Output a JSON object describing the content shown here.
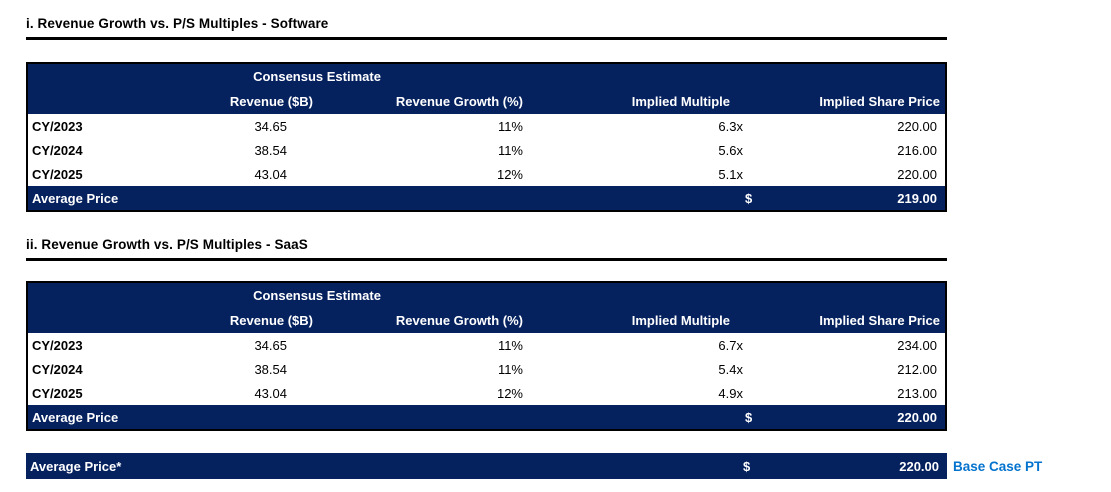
{
  "colors": {
    "navy": "#05215E",
    "note_blue": "#0473CE"
  },
  "sections": [
    {
      "title": "i. Revenue Growth vs. P/S Multiples - Software",
      "group_header": "Consensus Estimate",
      "columns": {
        "revenue": "Revenue ($B)",
        "growth": "Revenue Growth (%)",
        "multiple": "Implied Multiple",
        "price": "Implied Share Price"
      },
      "rows": [
        {
          "label": "CY/2023",
          "revenue": "34.65",
          "growth": "11%",
          "multiple": "6.3x",
          "price": "220.00"
        },
        {
          "label": "CY/2024",
          "revenue": "38.54",
          "growth": "11%",
          "multiple": "5.6x",
          "price": "216.00"
        },
        {
          "label": "CY/2025",
          "revenue": "43.04",
          "growth": "12%",
          "multiple": "5.1x",
          "price": "220.00"
        }
      ],
      "summary": {
        "label": "Average Price",
        "currency_symbol": "$",
        "value": "219.00"
      }
    },
    {
      "title": "ii. Revenue Growth vs. P/S Multiples - SaaS",
      "group_header": "Consensus Estimate",
      "columns": {
        "revenue": "Revenue ($B)",
        "growth": "Revenue Growth (%)",
        "multiple": "Implied Multiple",
        "price": "Implied Share Price"
      },
      "rows": [
        {
          "label": "CY/2023",
          "revenue": "34.65",
          "growth": "11%",
          "multiple": "6.7x",
          "price": "234.00"
        },
        {
          "label": "CY/2024",
          "revenue": "38.54",
          "growth": "11%",
          "multiple": "5.4x",
          "price": "212.00"
        },
        {
          "label": "CY/2025",
          "revenue": "43.04",
          "growth": "12%",
          "multiple": "4.9x",
          "price": "213.00"
        }
      ],
      "summary": {
        "label": "Average Price",
        "currency_symbol": "$",
        "value": "220.00"
      }
    }
  ],
  "footer": {
    "label": "Average Price*",
    "currency_symbol": "$",
    "value": "220.00",
    "note": "Base Case PT"
  }
}
